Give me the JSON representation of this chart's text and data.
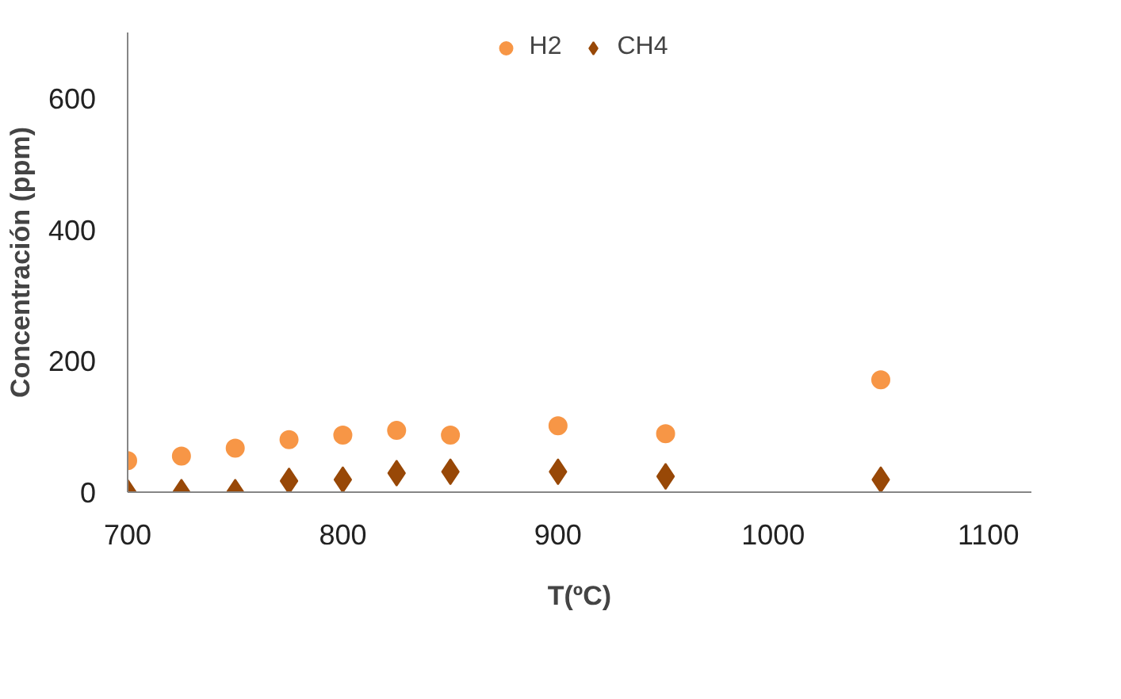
{
  "chart_data": {
    "type": "scatter",
    "xlabel": "T(ºC)",
    "ylabel": "Concentración (ppm)",
    "x": [
      700,
      725,
      750,
      775,
      800,
      825,
      850,
      900,
      950,
      1050
    ],
    "series": [
      {
        "name": "H2",
        "color": "#f79646",
        "marker": "circle",
        "values": [
          48,
          55,
          67,
          80,
          87,
          94,
          87,
          101,
          89,
          171
        ]
      },
      {
        "name": "CH4",
        "color": "#984807",
        "marker": "diamond",
        "values": [
          0,
          0,
          0,
          17,
          19,
          29,
          31,
          31,
          24,
          19
        ]
      }
    ],
    "xlim": [
      700,
      1120
    ],
    "xticks": [
      700,
      800,
      900,
      1000,
      1100
    ],
    "ylim": [
      0,
      700
    ],
    "yticks": [
      0,
      200,
      400,
      600
    ],
    "grid": false,
    "legend": "top"
  }
}
